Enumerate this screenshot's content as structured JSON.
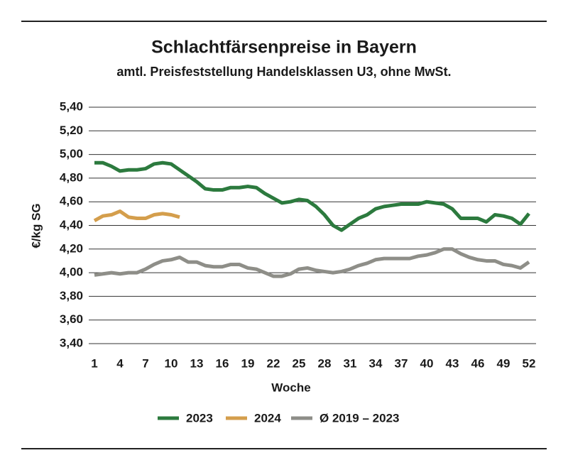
{
  "chart_data": {
    "type": "line",
    "title": "Schlachtfärsenpreise in Bayern",
    "subtitle": "amtl. Preisfeststellung Handelsklassen U3, ohne MwSt.",
    "x_label": "Woche",
    "y_label": "€/kg SG",
    "x": [
      1,
      2,
      3,
      4,
      5,
      6,
      7,
      8,
      9,
      10,
      11,
      12,
      13,
      14,
      15,
      16,
      17,
      18,
      19,
      20,
      21,
      22,
      23,
      24,
      25,
      26,
      27,
      28,
      29,
      30,
      31,
      32,
      33,
      34,
      35,
      36,
      37,
      38,
      39,
      40,
      41,
      42,
      43,
      44,
      45,
      46,
      47,
      48,
      49,
      50,
      51,
      52
    ],
    "xlim": [
      1,
      52
    ],
    "xticks": [
      1,
      4,
      7,
      10,
      13,
      16,
      19,
      22,
      25,
      28,
      31,
      34,
      37,
      40,
      43,
      46,
      49,
      52
    ],
    "ylim": [
      3.4,
      5.4
    ],
    "yticks": [
      {
        "value": 3.4,
        "label": "3,40"
      },
      {
        "value": 3.6,
        "label": "3,60"
      },
      {
        "value": 3.8,
        "label": "3,80"
      },
      {
        "value": 4.0,
        "label": "4,00"
      },
      {
        "value": 4.2,
        "label": "4,20"
      },
      {
        "value": 4.4,
        "label": "4,40"
      },
      {
        "value": 4.6,
        "label": "4,60"
      },
      {
        "value": 4.8,
        "label": "4,80"
      },
      {
        "value": 5.0,
        "label": "5,00"
      },
      {
        "value": 5.2,
        "label": "5,20"
      },
      {
        "value": 5.4,
        "label": "5,40"
      }
    ],
    "grid": true,
    "legend": "bottom",
    "series": [
      {
        "name": "2023",
        "color": "#2c7a3e",
        "values": [
          4.93,
          4.93,
          4.9,
          4.86,
          4.87,
          4.87,
          4.88,
          4.92,
          4.93,
          4.92,
          4.87,
          4.82,
          4.77,
          4.71,
          4.7,
          4.7,
          4.72,
          4.72,
          4.73,
          4.72,
          4.67,
          4.63,
          4.59,
          4.6,
          4.62,
          4.61,
          4.56,
          4.49,
          4.4,
          4.36,
          4.41,
          4.46,
          4.49,
          4.54,
          4.56,
          4.57,
          4.58,
          4.58,
          4.58,
          4.6,
          4.59,
          4.58,
          4.54,
          4.46,
          4.46,
          4.46,
          4.43,
          4.49,
          4.48,
          4.46,
          4.41,
          4.5
        ]
      },
      {
        "name": "2024",
        "color": "#d49e4c",
        "values": [
          4.44,
          4.48,
          4.49,
          4.52,
          4.47,
          4.46,
          4.46,
          4.49,
          4.5,
          4.49,
          4.47,
          null,
          null,
          null,
          null,
          null,
          null,
          null,
          null,
          null,
          null,
          null,
          null,
          null,
          null,
          null,
          null,
          null,
          null,
          null,
          null,
          null,
          null,
          null,
          null,
          null,
          null,
          null,
          null,
          null,
          null,
          null,
          null,
          null,
          null,
          null,
          null,
          null,
          null,
          null,
          null,
          null
        ]
      },
      {
        "name": "Ø 2019 – 2023",
        "color": "#8e8e88",
        "values": [
          3.98,
          3.99,
          4.0,
          3.99,
          4.0,
          4.0,
          4.03,
          4.07,
          4.1,
          4.11,
          4.13,
          4.09,
          4.09,
          4.06,
          4.05,
          4.05,
          4.07,
          4.07,
          4.04,
          4.03,
          4.0,
          3.97,
          3.97,
          3.99,
          4.03,
          4.04,
          4.02,
          4.01,
          4.0,
          4.01,
          4.03,
          4.06,
          4.08,
          4.11,
          4.12,
          4.12,
          4.12,
          4.12,
          4.14,
          4.15,
          4.17,
          4.2,
          4.2,
          4.16,
          4.13,
          4.11,
          4.1,
          4.1,
          4.07,
          4.06,
          4.04,
          4.09
        ]
      }
    ]
  }
}
